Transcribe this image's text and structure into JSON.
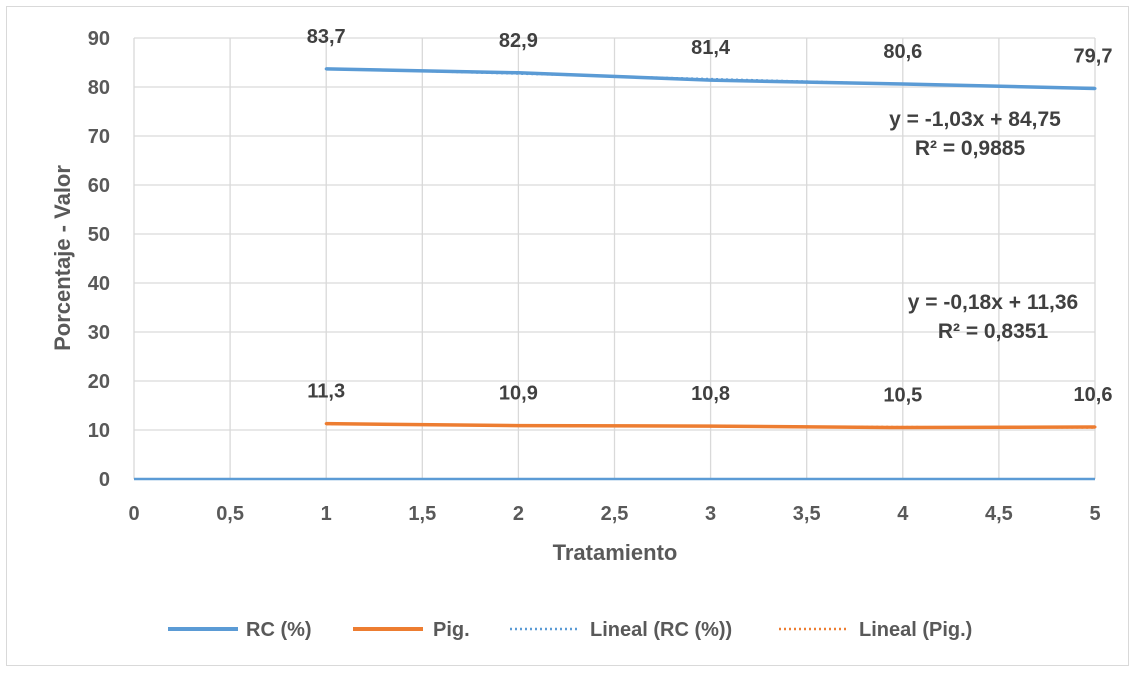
{
  "chart_data": {
    "type": "line",
    "xlabel": "Tratamiento",
    "ylabel": "Porcentaje - Valor",
    "xlim": [
      0,
      5
    ],
    "ylim": [
      0,
      90
    ],
    "x_ticks": [
      "0",
      "0,5",
      "1",
      "1,5",
      "2",
      "2,5",
      "3",
      "3,5",
      "4",
      "4,5",
      "5"
    ],
    "y_ticks": [
      "0",
      "10",
      "20",
      "30",
      "40",
      "50",
      "60",
      "70",
      "80",
      "90"
    ],
    "grid": true,
    "legend_position": "bottom",
    "x": [
      1,
      2,
      3,
      4,
      5
    ],
    "series": [
      {
        "name": "RC (%)",
        "values": [
          83.7,
          82.9,
          81.4,
          80.6,
          79.7
        ],
        "labels": [
          "83,7",
          "82,9",
          "81,4",
          "80,6",
          "79,7"
        ],
        "color": "#5B9BD5"
      },
      {
        "name": "Pig.",
        "values": [
          11.3,
          10.9,
          10.8,
          10.5,
          10.6
        ],
        "labels": [
          "11,3",
          "10,9",
          "10,8",
          "10,5",
          "10,6"
        ],
        "color": "#ED7D31"
      }
    ],
    "trendlines": [
      {
        "name": "Lineal (RC (%))",
        "slope": -1.03,
        "intercept": 84.75,
        "equation": "y = -1,03x + 84,75",
        "r2": "R² = 0,9885",
        "color": "#5B9BD5"
      },
      {
        "name": "Lineal (Pig.)",
        "slope": -0.18,
        "intercept": 11.36,
        "equation": "y = -0,18x + 11,36",
        "r2": "R² = 0,8351",
        "color": "#ED7D31"
      }
    ]
  }
}
